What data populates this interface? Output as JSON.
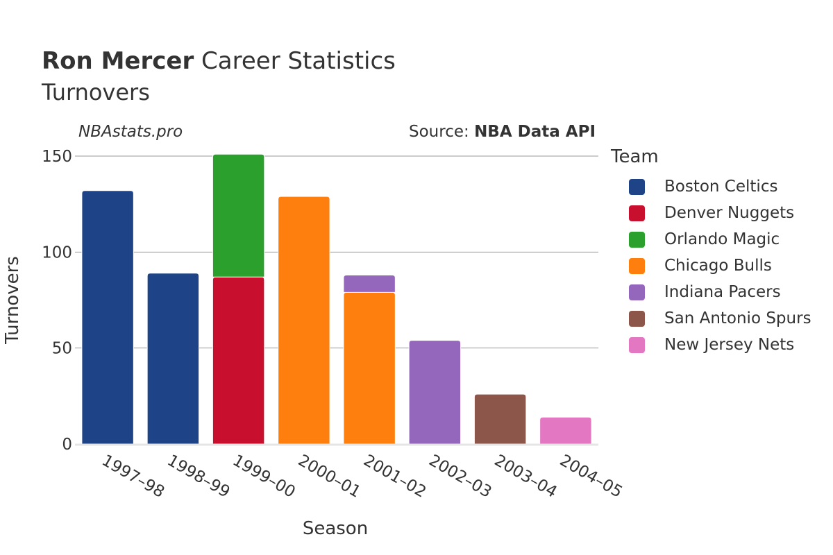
{
  "header": {
    "title_bold": "Ron Mercer",
    "title_rest": "Career Statistics",
    "subtitle": "Turnovers",
    "brand": "NBAstats.pro",
    "source_prefix": "Source: ",
    "source_name": "NBA Data API"
  },
  "legend": {
    "title": "Team",
    "items": [
      {
        "label": "Boston Celtics",
        "color": "#1f4387"
      },
      {
        "label": "Denver Nuggets",
        "color": "#c8102e"
      },
      {
        "label": "Orlando Magic",
        "color": "#2ca02c"
      },
      {
        "label": "Chicago Bulls",
        "color": "#ff7f0e"
      },
      {
        "label": "Indiana Pacers",
        "color": "#9467bd"
      },
      {
        "label": "San Antonio Spurs",
        "color": "#8c564b"
      },
      {
        "label": "New Jersey Nets",
        "color": "#e377c2"
      }
    ]
  },
  "chart_data": {
    "type": "bar",
    "stacked": true,
    "xlabel": "Season",
    "ylabel": "Turnovers",
    "ylim": [
      0,
      150
    ],
    "yticks": [
      0,
      50,
      100,
      150
    ],
    "grid": true,
    "legend_position": "right",
    "categories": [
      "1997–98",
      "1998–99",
      "1999–00",
      "2000–01",
      "2001–02",
      "2002–03",
      "2003–04",
      "2004–05"
    ],
    "series": [
      {
        "name": "Boston Celtics",
        "color": "#1f4387",
        "values": [
          132,
          89,
          0,
          0,
          0,
          0,
          0,
          0
        ]
      },
      {
        "name": "Denver Nuggets",
        "color": "#c8102e",
        "values": [
          0,
          0,
          87,
          0,
          0,
          0,
          0,
          0
        ]
      },
      {
        "name": "Orlando Magic",
        "color": "#2ca02c",
        "values": [
          0,
          0,
          64,
          0,
          0,
          0,
          0,
          0
        ]
      },
      {
        "name": "Chicago Bulls",
        "color": "#ff7f0e",
        "values": [
          0,
          0,
          0,
          129,
          79,
          0,
          0,
          0
        ]
      },
      {
        "name": "Indiana Pacers",
        "color": "#9467bd",
        "values": [
          0,
          0,
          0,
          0,
          9,
          54,
          0,
          0
        ]
      },
      {
        "name": "San Antonio Spurs",
        "color": "#8c564b",
        "values": [
          0,
          0,
          0,
          0,
          0,
          0,
          26,
          0
        ]
      },
      {
        "name": "New Jersey Nets",
        "color": "#e377c2",
        "values": [
          0,
          0,
          0,
          0,
          0,
          0,
          0,
          14
        ]
      }
    ]
  }
}
